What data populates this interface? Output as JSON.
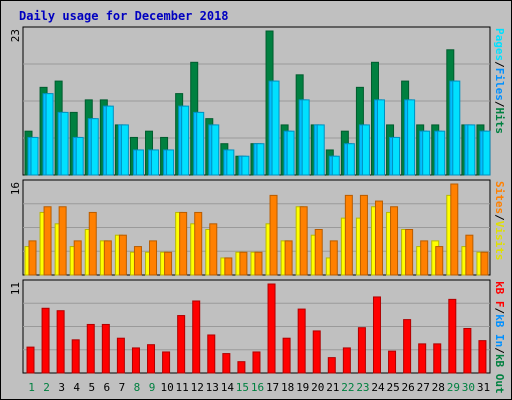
{
  "title": "Daily usage for December 2018",
  "colors": {
    "frame_bg": "#c0c0c0",
    "plot_bg": "#c0c0c0",
    "title": "#0000c0",
    "hits": "#008040",
    "hits_dark": "#005c2e",
    "files": "#00c0ff",
    "files_dark": "#0090c0",
    "pages": "#00e0ff",
    "visits": "#ffff00",
    "visits_dark": "#b8b800",
    "sites": "#ff8000",
    "sites_dark": "#b85c00",
    "kbytes": "#ff0000",
    "kbytes_dark": "#b00000",
    "axis_max": "#000000",
    "weekday_label": "#000000",
    "weekend_label": "#008040"
  },
  "panels": {
    "top": {
      "max_label": "23",
      "legend": [
        {
          "text": "Pages",
          "color": "#00e0ff"
        },
        {
          "text": "/",
          "color": "#000000"
        },
        {
          "text": "Files",
          "color": "#0090ff"
        },
        {
          "text": "/",
          "color": "#000000"
        },
        {
          "text": "Hits",
          "color": "#008040"
        }
      ]
    },
    "middle": {
      "max_label": "16",
      "legend": [
        {
          "text": "Sites",
          "color": "#ff8000"
        },
        {
          "text": "/",
          "color": "#000000"
        },
        {
          "text": "Visits",
          "color": "#e0e000"
        }
      ]
    },
    "bottom": {
      "max_label": "11",
      "legend": [
        {
          "text": "kB F",
          "color": "#ff0000"
        },
        {
          "text": "/",
          "color": "#000000"
        },
        {
          "text": "kB In",
          "color": "#0090ff"
        },
        {
          "text": "/",
          "color": "#000000"
        },
        {
          "text": "kB Out",
          "color": "#008040"
        }
      ]
    }
  },
  "chart_data": {
    "type": "bar",
    "x": [
      1,
      2,
      3,
      4,
      5,
      6,
      7,
      8,
      9,
      10,
      11,
      12,
      13,
      14,
      15,
      16,
      17,
      18,
      19,
      20,
      21,
      22,
      23,
      24,
      25,
      26,
      27,
      28,
      29,
      30,
      31
    ],
    "weekend_days": [
      1,
      2,
      8,
      9,
      15,
      16,
      22,
      23,
      29,
      30
    ],
    "series": [
      {
        "name": "Hits",
        "panel": "top",
        "ymax": 23,
        "values": [
          7,
          14,
          15,
          10,
          12,
          12,
          8,
          6,
          7,
          6,
          13,
          18,
          9,
          5,
          3,
          5,
          23,
          8,
          16,
          8,
          4,
          7,
          14,
          18,
          8,
          15,
          8,
          8,
          20,
          8,
          8
        ]
      },
      {
        "name": "Files",
        "panel": "top",
        "ymax": 23,
        "values": [
          6,
          13,
          10,
          6,
          9,
          11,
          8,
          4,
          4,
          4,
          11,
          10,
          8,
          4,
          3,
          5,
          15,
          7,
          12,
          8,
          3,
          5,
          8,
          12,
          6,
          12,
          7,
          7,
          15,
          8,
          7
        ]
      },
      {
        "name": "Pages",
        "panel": "top",
        "ymax": 23,
        "values": [
          6,
          13,
          10,
          6,
          9,
          11,
          8,
          4,
          4,
          4,
          11,
          10,
          8,
          4,
          3,
          5,
          15,
          7,
          12,
          8,
          3,
          5,
          8,
          12,
          6,
          12,
          7,
          7,
          15,
          8,
          7
        ]
      },
      {
        "name": "Visits",
        "panel": "middle",
        "ymax": 16,
        "values": [
          5,
          11,
          9,
          5,
          8,
          6,
          7,
          4,
          4,
          4,
          11,
          9,
          8,
          3,
          4,
          4,
          9,
          6,
          12,
          7,
          3,
          10,
          10,
          12,
          11,
          8,
          5,
          6,
          14,
          5,
          4
        ]
      },
      {
        "name": "Sites",
        "panel": "middle",
        "ymax": 16,
        "values": [
          6,
          12,
          12,
          6,
          11,
          6,
          7,
          5,
          6,
          4,
          11,
          11,
          9,
          3,
          4,
          4,
          14,
          6,
          12,
          8,
          6,
          14,
          14,
          13,
          12,
          8,
          6,
          5,
          16,
          7,
          4
        ]
      },
      {
        "name": "kB F",
        "panel": "bottom",
        "ymax": 11,
        "values": [
          3.2,
          8,
          7.7,
          4.1,
          6,
          6,
          4.3,
          3.1,
          3.5,
          2.6,
          7.1,
          8.9,
          4.7,
          2.4,
          1.4,
          2.6,
          11,
          4.3,
          7.9,
          5.2,
          1.9,
          3.1,
          5.6,
          9.4,
          2.7,
          6.6,
          3.6,
          3.6,
          9.1,
          5.5,
          4.0
        ]
      }
    ]
  }
}
